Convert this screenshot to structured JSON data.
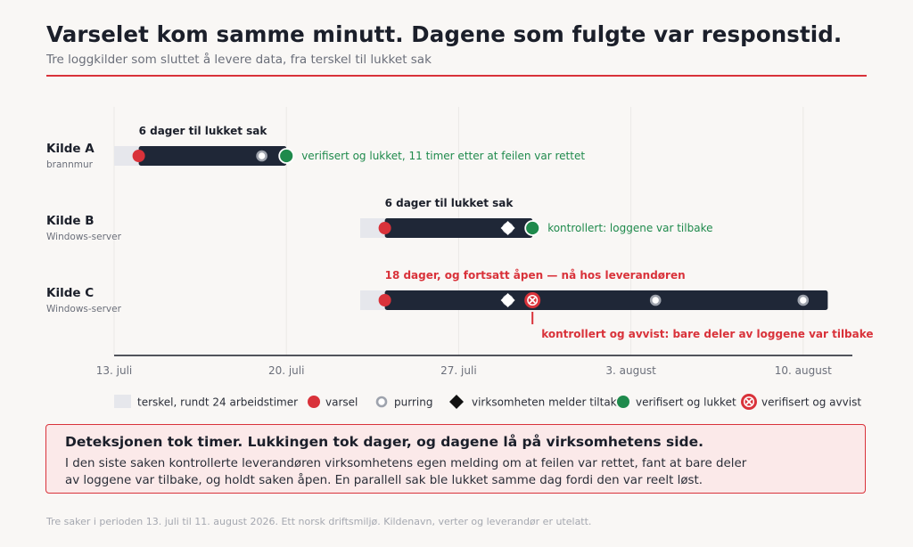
{
  "header": {
    "title": "Varselet kom samme minutt. Dagene som fulgte var responstid.",
    "subtitle": "Tre loggkilder som sluttet å levere data, fra terskel til lukket sak"
  },
  "colors": {
    "accent": "#d9323a",
    "bar": "#1f2737",
    "threshold": "#e6e7ec",
    "green": "#1f8a4c",
    "ring": "#9ea3ad",
    "axis": "#1b1f2a"
  },
  "chart_data": {
    "type": "timeline",
    "x_axis": {
      "ticks": [
        "2026-07-13",
        "2026-07-20",
        "2026-07-27",
        "2026-08-03",
        "2026-08-10"
      ],
      "tick_labels": [
        "13. juli",
        "20. juli",
        "27. juli",
        "3. august",
        "10. august"
      ],
      "range": [
        "2026-07-13",
        "2026-08-14"
      ]
    },
    "grid": "vertical",
    "rows": [
      {
        "name": "Kilde A",
        "sub": "brannmur",
        "threshold_start": "2026-07-13",
        "alert": "2026-07-14",
        "closed": "2026-07-20",
        "reminders": [
          "2026-07-19"
        ],
        "action": "2026-07-20",
        "end_marker": "verified_closed",
        "duration_label": "6 dager til lukket sak",
        "duration_status": "closed",
        "end_note": "verifisert og lukket, 11 timer etter at feilen var rettet",
        "end_note_color": "green"
      },
      {
        "name": "Kilde B",
        "sub": "Windows-server",
        "threshold_start": "2026-07-23",
        "alert": "2026-07-24",
        "closed": "2026-07-30",
        "reminders": [
          "2026-07-29"
        ],
        "action": "2026-07-29",
        "end_marker": "verified_closed",
        "duration_label": "6 dager til lukket sak",
        "duration_status": "closed",
        "end_note": "kontrollert: loggene var tilbake",
        "end_note_color": "green"
      },
      {
        "name": "Kilde C",
        "sub": "Windows-server",
        "threshold_start": "2026-07-23",
        "alert": "2026-07-24",
        "bar_end": "2026-08-11",
        "reminders": [
          "2026-07-29",
          "2026-08-04",
          "2026-08-10"
        ],
        "action": "2026-07-29",
        "rejected": "2026-07-30",
        "end_marker": "open",
        "duration_label": "18 dager, og fortsatt åpen — nå hos leverandøren",
        "duration_status": "open",
        "reject_note": "kontrollert og avvist: bare deler av loggene var tilbake"
      }
    ],
    "legend": [
      {
        "key": "threshold",
        "label": "terskel, rundt 24 arbeidstimer"
      },
      {
        "key": "alert",
        "label": "varsel"
      },
      {
        "key": "reminder",
        "label": "purring"
      },
      {
        "key": "action",
        "label": "virksomheten melder tiltak"
      },
      {
        "key": "verified_closed",
        "label": "verifisert og lukket"
      },
      {
        "key": "verified_rejected",
        "label": "verifisert og avvist"
      }
    ],
    "legend_position": "bottom"
  },
  "callout": {
    "title": "Deteksjonen tok timer. Lukkingen tok dager, og dagene lå på virksomhetens side.",
    "body": "I den siste saken kontrollerte leverandøren virksomhetens egen melding om at feilen var rettet, fant at bare deler av loggene var tilbake, og holdt saken åpen. En parallell sak ble lukket samme dag fordi den var reelt løst."
  },
  "footnote": "Tre saker i perioden 13. juli til 11. august 2026. Ett norsk driftsmiljø. Kildenavn, verter og leverandør er utelatt."
}
